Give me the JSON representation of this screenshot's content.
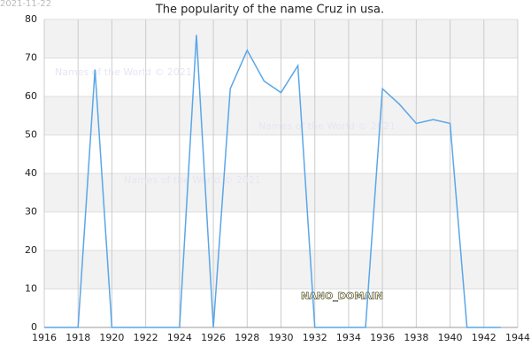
{
  "chart_data": {
    "type": "line",
    "title": "The popularity of the name Cruz in usa.",
    "date_stamp": "2021-11-22",
    "watermarks": [
      "Names of the World © 2021",
      "Names of the World © 2021",
      "Names of the World © 2021"
    ],
    "domain_label": "NANO_DOMAIN",
    "x": [
      1916,
      1917,
      1918,
      1919,
      1920,
      1921,
      1922,
      1923,
      1924,
      1925,
      1926,
      1927,
      1928,
      1929,
      1930,
      1931,
      1932,
      1933,
      1934,
      1935,
      1936,
      1937,
      1938,
      1939,
      1940,
      1941,
      1942,
      1943
    ],
    "series": [
      {
        "color": "#5aa6e8",
        "values": [
          0,
          0,
          0,
          67,
          0,
          0,
          0,
          0,
          0,
          76,
          0,
          62,
          72,
          64,
          61,
          68,
          0,
          0,
          0,
          0,
          62,
          58,
          53,
          54,
          53,
          0,
          0,
          0
        ]
      }
    ],
    "xlim": [
      1916,
      1944
    ],
    "xticks": [
      1916,
      1918,
      1920,
      1922,
      1924,
      1926,
      1928,
      1930,
      1932,
      1934,
      1936,
      1938,
      1940,
      1942,
      1944
    ],
    "ylim": [
      0,
      80
    ],
    "yticks": [
      0,
      10,
      20,
      30,
      40,
      50,
      60,
      70,
      80
    ],
    "grid": true
  }
}
